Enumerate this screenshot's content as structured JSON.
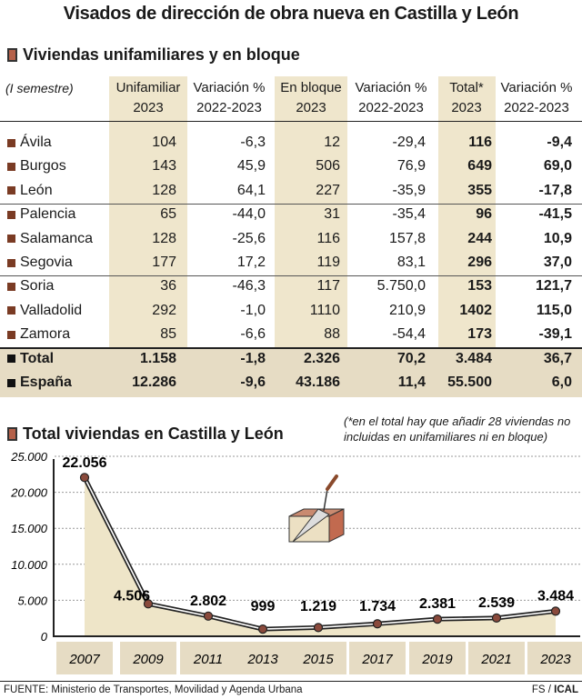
{
  "title": "Visados de dirección de obra nueva en Castilla y León",
  "table": {
    "section_title": "Viviendas unifamiliares y en bloque",
    "period": "(I semestre)",
    "headers": [
      [
        "Unifamiliar",
        "2023"
      ],
      [
        "Variación %",
        "2022-2023"
      ],
      [
        "En bloque",
        "2023"
      ],
      [
        "Variación %",
        "2022-2023"
      ],
      [
        "Total*",
        "2023"
      ],
      [
        "Variación %",
        "2022-2023"
      ]
    ],
    "rows": [
      [
        "Ávila",
        "104",
        "-6,3",
        "12",
        "-29,4",
        "116",
        "-9,4"
      ],
      [
        "Burgos",
        "143",
        "45,9",
        "506",
        "76,9",
        "649",
        "69,0"
      ],
      [
        "León",
        "128",
        "64,1",
        "227",
        "-35,9",
        "355",
        "-17,8"
      ],
      [
        "Palencia",
        "65",
        "-44,0",
        "31",
        "-35,4",
        "96",
        "-41,5"
      ],
      [
        "Salamanca",
        "128",
        "-25,6",
        "116",
        "157,8",
        "244",
        "10,9"
      ],
      [
        "Segovia",
        "177",
        "17,2",
        "119",
        "83,1",
        "296",
        "37,0"
      ],
      [
        "Soria",
        "36",
        "-46,3",
        "117",
        "5.750,0",
        "153",
        "121,7"
      ],
      [
        "Valladolid",
        "292",
        "-1,0",
        "1110",
        "210,9",
        "1402",
        "115,0"
      ],
      [
        "Zamora",
        "85",
        "-6,6",
        "88",
        "-54,4",
        "173",
        "-39,1"
      ],
      [
        "Total",
        "1.158",
        "-1,8",
        "2.326",
        "70,2",
        "3.484",
        "36,7"
      ],
      [
        "España",
        "12.286",
        "-9,6",
        "43.186",
        "11,4",
        "55.500",
        "6,0"
      ]
    ]
  },
  "chart_data": {
    "type": "area",
    "title": "Total viviendas en Castilla y León",
    "note": "(*en el total hay que añadir 28 viviendas no incluidas en unifamiliares ni en bloque)",
    "categories": [
      "2007",
      "2009",
      "2011",
      "2013",
      "2015",
      "2017",
      "2019",
      "2021",
      "2023"
    ],
    "values": [
      22056,
      4506,
      2802,
      999,
      1219,
      1734,
      2381,
      2539,
      3484
    ],
    "data_labels": [
      "22.056",
      "4.506",
      "2.802",
      "999",
      "1.219",
      "1.734",
      "2.381",
      "2.539",
      "3.484"
    ],
    "yticks": [
      "0",
      "5.000",
      "10.000",
      "15.000",
      "20.000",
      "25.000"
    ],
    "ylim": [
      0,
      25000
    ],
    "grid": true,
    "colors": {
      "fill": "#eee5c8",
      "line": "#222222",
      "marker": "#8a4a3c",
      "band": "#e6dcc4"
    }
  },
  "footer": {
    "source": "FUENTE: Ministerio de Transportes, Movilidad y Agenda Urbana",
    "credit_a": "FS / ",
    "credit_b": "ICAL"
  }
}
